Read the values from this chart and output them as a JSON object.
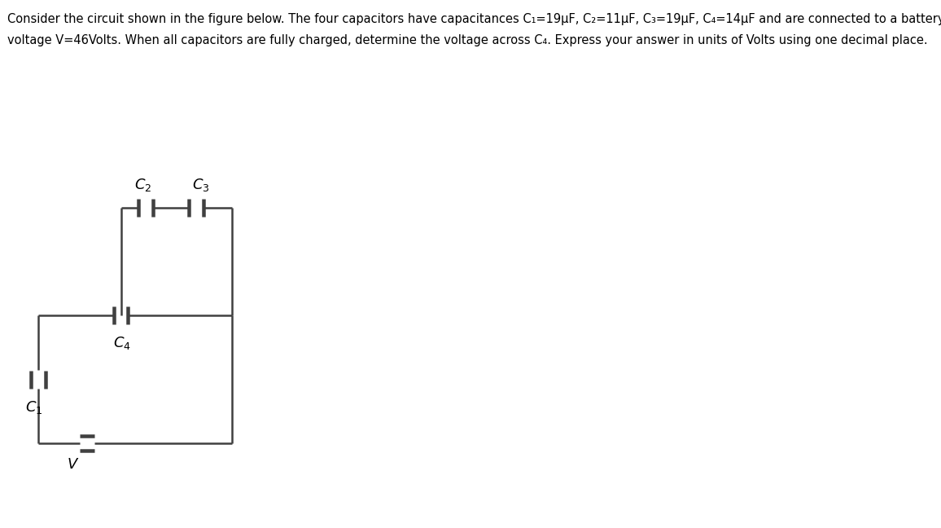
{
  "title_line1": "Consider the circuit shown in the figure below. The four capacitors have capacitances C₁=19μF, C₂=11μF, C₃=19μF, C₄=14μF and are connected to a battery of",
  "title_line2": "voltage V=46Volts. When all capacitors are fully charged, determine the voltage across C₄. Express your answer in units of Volts using one decimal place.",
  "bg_color": "#e6e6e6",
  "line_color": "#404040",
  "text_color": "#000000",
  "labels": {
    "C1": "$C_1$",
    "C2": "$C_2$",
    "C3": "$C_3$",
    "C4": "$C_4$",
    "V": "$V$"
  },
  "fig_width": 11.56,
  "fig_height": 6.48,
  "title_fontsize": 10.5,
  "label_fontsize": 13
}
